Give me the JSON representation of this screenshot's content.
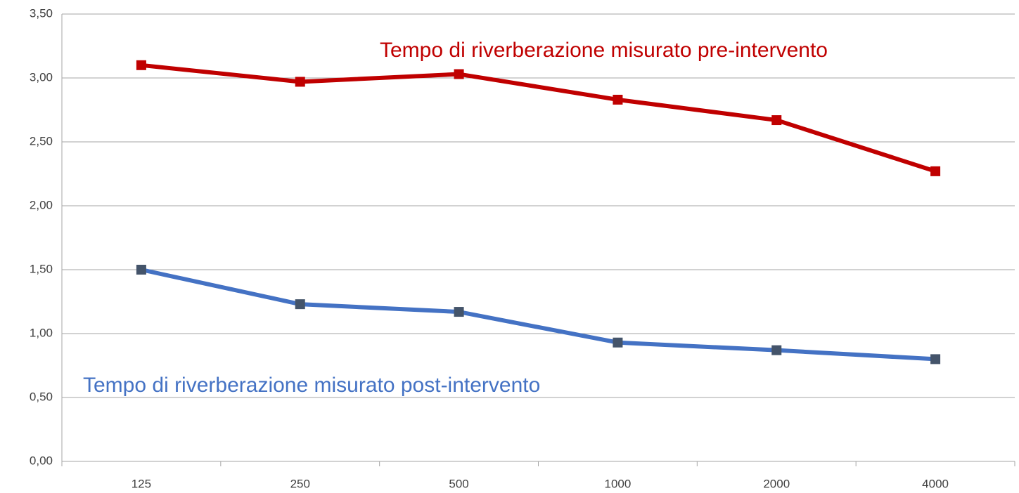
{
  "chart_data": {
    "type": "line",
    "categories": [
      "125",
      "250",
      "500",
      "1000",
      "2000",
      "4000"
    ],
    "series": [
      {
        "name": "Tempo di riverberazione misurato pre-intervento",
        "color": "#c00000",
        "marker_color": "#c00000",
        "values": [
          3.1,
          2.97,
          3.03,
          2.83,
          2.67,
          2.27
        ]
      },
      {
        "name": "Tempo di riverberazione misurato post-intervento",
        "color": "#4472c4",
        "marker_color": "#44546a",
        "values": [
          1.5,
          1.23,
          1.17,
          0.93,
          0.87,
          0.8
        ]
      }
    ],
    "ylim": [
      0,
      3.5
    ],
    "yticks": [
      {
        "value": 0,
        "label": "0,00"
      },
      {
        "value": 0.5,
        "label": "0,50"
      },
      {
        "value": 1,
        "label": "1,00"
      },
      {
        "value": 1.5,
        "label": "1,50"
      },
      {
        "value": 2,
        "label": "2,00"
      },
      {
        "value": 2.5,
        "label": "2,50"
      },
      {
        "value": 3,
        "label": "3,00"
      },
      {
        "value": 3.5,
        "label": "3,50"
      }
    ],
    "grid": true
  }
}
